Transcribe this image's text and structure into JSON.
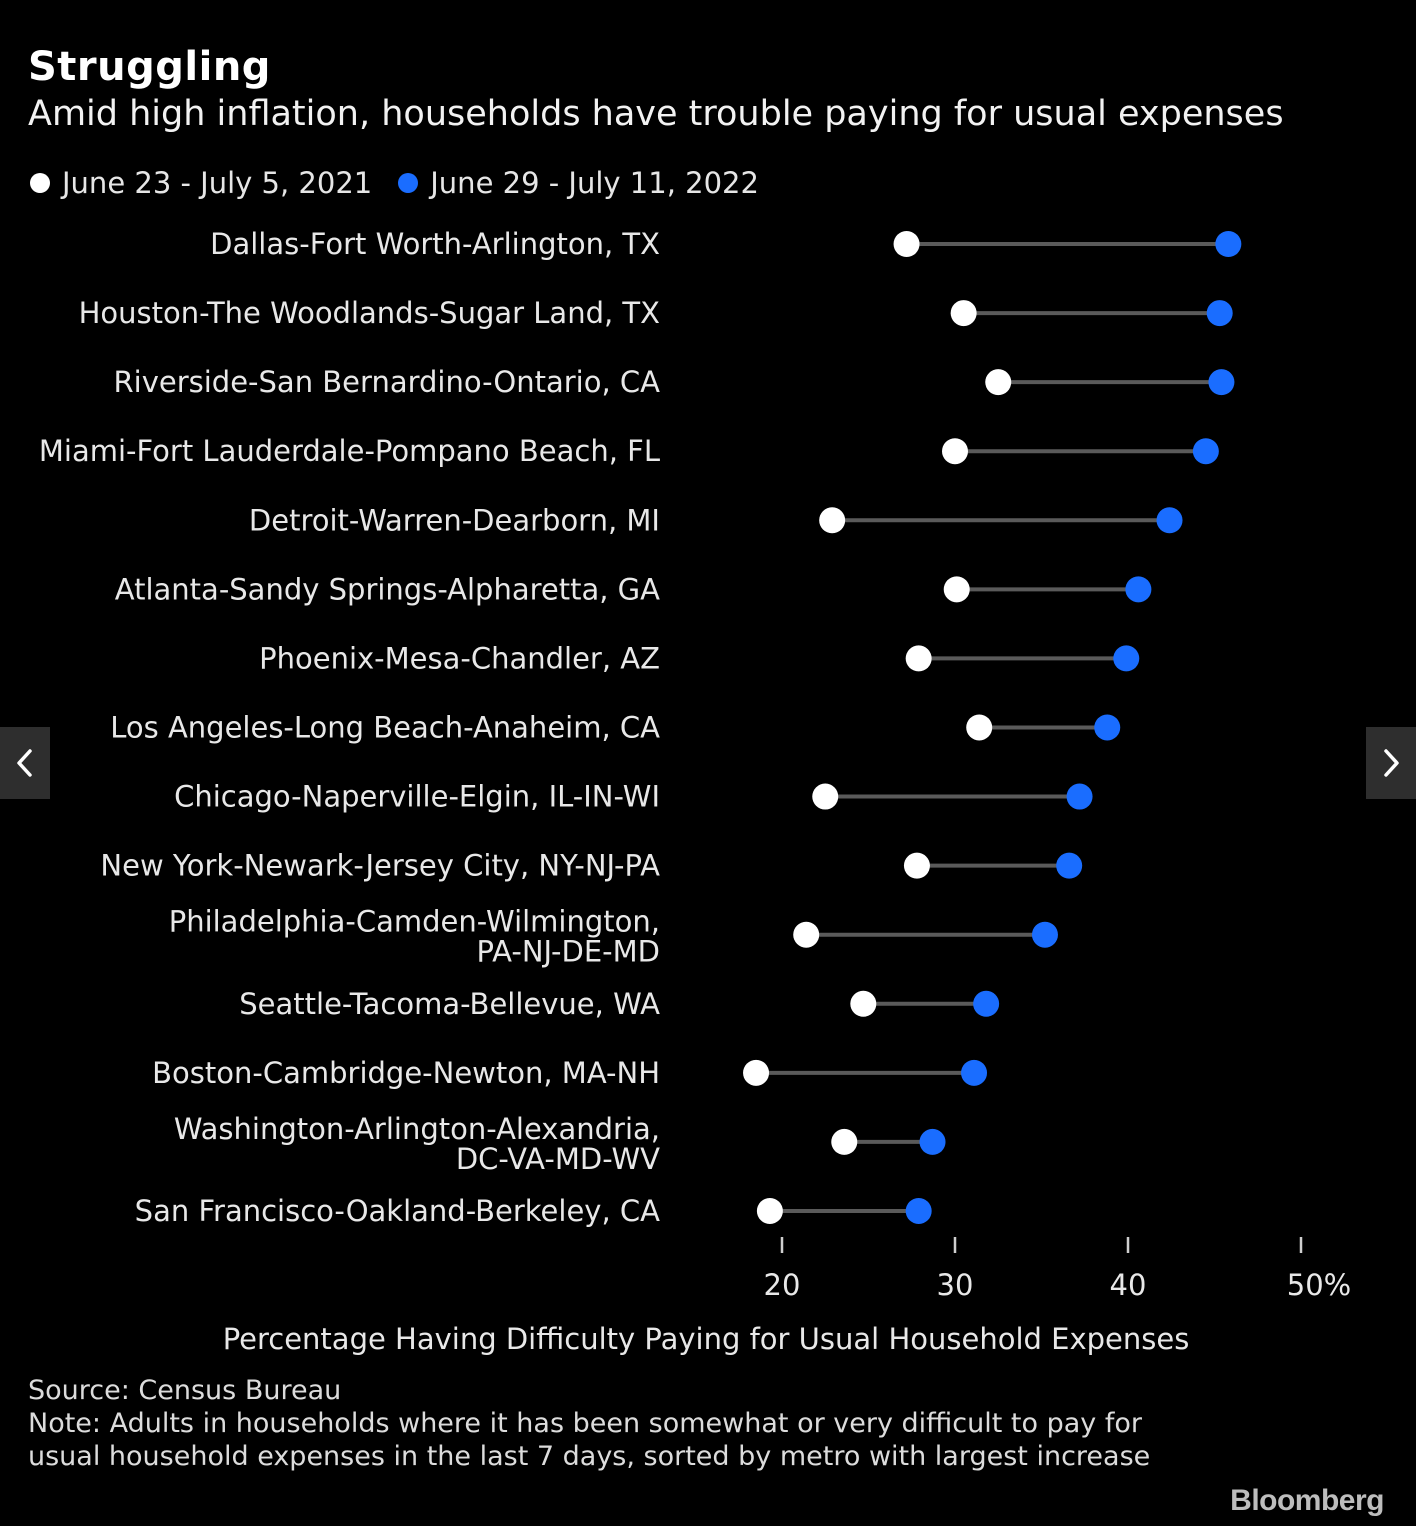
{
  "colors": {
    "background": "#000000",
    "series_2021": "#ffffff",
    "series_2022": "#1a6dff",
    "connector": "#5a5a5a",
    "nav_button": "#2e2e2e"
  },
  "header": {
    "title": "Struggling",
    "subtitle": "Amid high inflation, households have trouble paying for usual expenses"
  },
  "legend": [
    {
      "label": "June 23 - July 5, 2021",
      "color": "#ffffff"
    },
    {
      "label": "June 29 - July 11, 2022",
      "color": "#1a6dff"
    }
  ],
  "chart_data": {
    "type": "dumbbell",
    "xlabel": "Percentage Having Difficulty Paying for Usual Household Expenses",
    "xlim": [
      20,
      50
    ],
    "xticks": [
      20,
      30,
      40,
      50
    ],
    "xtick_labels": [
      "20",
      "30",
      "40",
      "50%"
    ],
    "grid": false,
    "legend_position": "top-left",
    "categories": [
      [
        "Dallas-Fort Worth-Arlington, TX"
      ],
      [
        "Houston-The Woodlands-Sugar Land, TX"
      ],
      [
        "Riverside-San Bernardino-Ontario, CA"
      ],
      [
        "Miami-Fort Lauderdale-Pompano Beach, FL"
      ],
      [
        "Detroit-Warren-Dearborn, MI"
      ],
      [
        "Atlanta-Sandy Springs-Alpharetta, GA"
      ],
      [
        "Phoenix-Mesa-Chandler, AZ"
      ],
      [
        "Los Angeles-Long Beach-Anaheim, CA"
      ],
      [
        "Chicago-Naperville-Elgin, IL-IN-WI"
      ],
      [
        "New York-Newark-Jersey City, NY-NJ-PA"
      ],
      [
        "Philadelphia-Camden-Wilmington,",
        "PA-NJ-DE-MD"
      ],
      [
        "Seattle-Tacoma-Bellevue, WA"
      ],
      [
        "Boston-Cambridge-Newton, MA-NH"
      ],
      [
        "Washington-Arlington-Alexandria,",
        "DC-VA-MD-WV"
      ],
      [
        "San Francisco-Oakland-Berkeley, CA"
      ]
    ],
    "series": [
      {
        "name": "June 23 - July 5, 2021",
        "values": [
          27.2,
          30.5,
          32.5,
          30.0,
          22.9,
          30.1,
          27.9,
          31.4,
          22.5,
          27.8,
          21.4,
          24.7,
          18.5,
          23.6,
          19.3
        ]
      },
      {
        "name": "June 29 - July 11, 2022",
        "values": [
          45.8,
          45.3,
          45.4,
          44.5,
          42.4,
          40.6,
          39.9,
          38.8,
          37.2,
          36.6,
          35.2,
          31.8,
          31.1,
          28.7,
          27.9
        ]
      }
    ]
  },
  "footer": {
    "source": "Source: Census Bureau",
    "note": "Note: Adults in households where it has been somewhat or very difficult to pay for usual household expenses in the last 7 days, sorted by metro with largest increase"
  },
  "brand": "Bloomberg",
  "nav": {
    "prev_icon": "chevron-left-icon",
    "next_icon": "chevron-right-icon"
  }
}
